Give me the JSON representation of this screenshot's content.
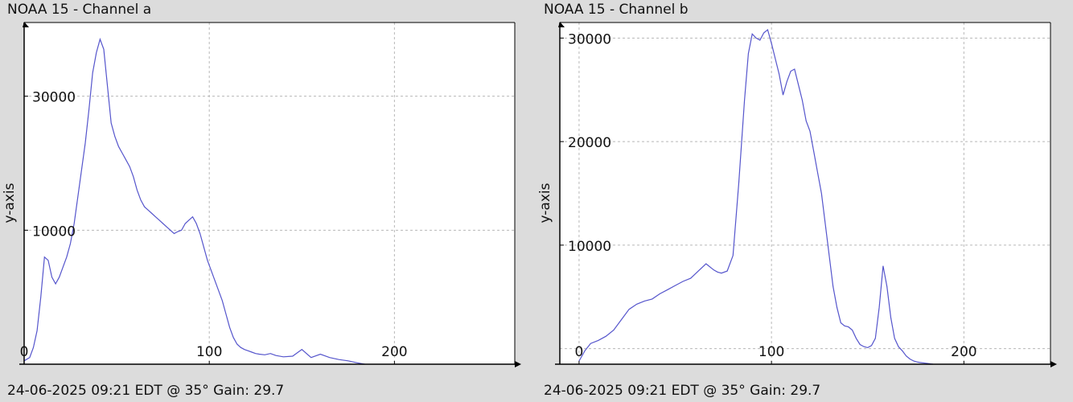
{
  "panels": [
    {
      "title": "NOAA 15 - Channel a",
      "footer": "24-06-2025 09:21 EDT @ 35° Gain: 29.7"
    },
    {
      "title": "NOAA 15 - Channel b",
      "footer": "24-06-2025 09:21 EDT @ 35° Gain: 29.7"
    }
  ],
  "colors": {
    "background": "#dcdcdc",
    "plot_area": "#ffffff",
    "line": "#5555cc",
    "grid": "#b8b8b8",
    "axis": "#000000"
  },
  "chart_data": [
    {
      "type": "line",
      "title": "NOAA 15 - Channel a",
      "xlabel": "",
      "ylabel": "y-axis",
      "xlim": [
        0,
        265
      ],
      "ylim": [
        -10000,
        41000
      ],
      "xticks": [
        0,
        100,
        200
      ],
      "yticks": [
        10000,
        30000
      ],
      "ytick_labels_shown": [
        "30000",
        "10000"
      ],
      "grid": true,
      "series": [
        {
          "x": [
            0,
            3,
            5,
            7,
            9,
            11,
            13,
            15,
            17,
            19,
            21,
            23,
            25,
            27,
            29,
            31,
            33,
            35,
            37,
            39,
            41,
            43,
            45,
            47,
            49,
            51,
            53,
            55,
            57,
            59,
            61,
            63,
            65,
            67,
            69,
            71,
            73,
            75,
            77,
            79,
            81,
            83,
            85,
            87,
            89,
            91,
            93,
            95,
            97,
            99,
            101,
            103,
            105,
            107,
            109,
            111,
            113,
            115,
            117,
            119,
            121,
            123,
            125,
            127,
            130,
            133,
            136,
            140,
            145,
            150,
            155,
            160,
            165,
            170,
            175,
            180,
            184
          ],
          "y": [
            -9500,
            -9000,
            -7500,
            -5000,
            0,
            6000,
            5500,
            3000,
            2000,
            3000,
            4500,
            6000,
            8000,
            11000,
            15000,
            19000,
            23000,
            28000,
            33500,
            36500,
            38500,
            37000,
            31500,
            26000,
            24000,
            22500,
            21500,
            20500,
            19500,
            18000,
            16000,
            14500,
            13500,
            13000,
            12500,
            12000,
            11500,
            11000,
            10500,
            10000,
            9500,
            9800,
            10000,
            11000,
            11500,
            12000,
            11000,
            9500,
            7500,
            5500,
            4000,
            2500,
            1000,
            -500,
            -2500,
            -4500,
            -6000,
            -7000,
            -7500,
            -7800,
            -8000,
            -8200,
            -8400,
            -8500,
            -8600,
            -8400,
            -8700,
            -8900,
            -8800,
            -7800,
            -9000,
            -8500,
            -9000,
            -9300,
            -9500,
            -9800,
            -10000
          ]
        }
      ]
    },
    {
      "type": "line",
      "title": "NOAA 15 - Channel b",
      "xlabel": "",
      "ylabel": "y-axis",
      "xlim": [
        -10,
        245
      ],
      "ylim": [
        -1500,
        31500
      ],
      "xticks": [
        0,
        100,
        200
      ],
      "yticks": [
        0,
        10000,
        20000,
        30000
      ],
      "grid": true,
      "series": [
        {
          "x": [
            0,
            3,
            6,
            10,
            14,
            18,
            22,
            26,
            30,
            34,
            38,
            42,
            46,
            50,
            54,
            58,
            62,
            66,
            70,
            72,
            74,
            77,
            80,
            83,
            86,
            88,
            90,
            92,
            94,
            96,
            98,
            100,
            102,
            104,
            106,
            108,
            110,
            112,
            114,
            116,
            118,
            120,
            122,
            124,
            126,
            128,
            130,
            132,
            134,
            136,
            138,
            140,
            142,
            144,
            146,
            148,
            150,
            152,
            154,
            156,
            158,
            160,
            162,
            164,
            166,
            168,
            170,
            172,
            174,
            176,
            178,
            180,
            182,
            184
          ],
          "y": [
            -1200,
            -200,
            500,
            800,
            1200,
            1800,
            2800,
            3800,
            4300,
            4600,
            4800,
            5300,
            5700,
            6100,
            6500,
            6800,
            7500,
            8200,
            7600,
            7400,
            7300,
            7500,
            9000,
            16000,
            24000,
            28500,
            30400,
            30000,
            29800,
            30500,
            30800,
            29500,
            28000,
            26500,
            24500,
            25800,
            26800,
            27000,
            25500,
            24000,
            22000,
            21000,
            19000,
            17000,
            15000,
            12000,
            9000,
            6000,
            4000,
            2500,
            2200,
            2100,
            1800,
            1000,
            400,
            200,
            100,
            300,
            1000,
            4000,
            8000,
            6000,
            3000,
            1000,
            200,
            -200,
            -700,
            -1000,
            -1200,
            -1300,
            -1350,
            -1400,
            -1450,
            -1500
          ]
        }
      ]
    }
  ]
}
